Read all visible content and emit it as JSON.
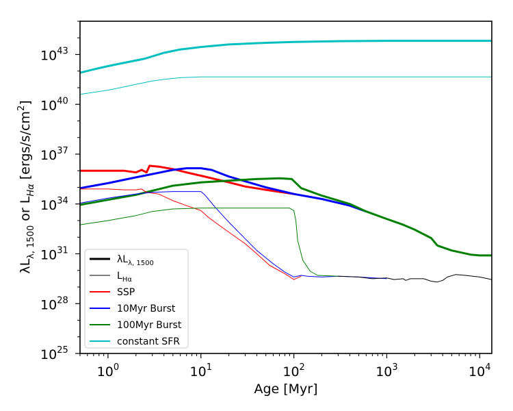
{
  "chart_data": {
    "type": "line",
    "xlabel": "Age [Myr]",
    "ylabel": "λL_{λ,1500} or L_{Hα} [ergs/s/cm^2]",
    "xscale": "log",
    "yscale": "log",
    "xlim": [
      0.5,
      13500
    ],
    "ylim_exp": [
      25,
      45
    ],
    "xticks": [
      {
        "exp": 0,
        "label": "10",
        "sup": "0"
      },
      {
        "exp": 1,
        "label": "10",
        "sup": "1"
      },
      {
        "exp": 2,
        "label": "10",
        "sup": "2"
      },
      {
        "exp": 3,
        "label": "10",
        "sup": "3"
      },
      {
        "exp": 4,
        "label": "10",
        "sup": "4"
      }
    ],
    "yticks": [
      {
        "exp": 25,
        "label": "10",
        "sup": "25"
      },
      {
        "exp": 28,
        "label": "10",
        "sup": "28"
      },
      {
        "exp": 31,
        "label": "10",
        "sup": "31"
      },
      {
        "exp": 34,
        "label": "10",
        "sup": "34"
      },
      {
        "exp": 37,
        "label": "10",
        "sup": "37"
      },
      {
        "exp": 40,
        "label": "10",
        "sup": "40"
      },
      {
        "exp": 43,
        "label": "10",
        "sup": "43"
      }
    ],
    "legend_position": "lower-left",
    "legend": [
      {
        "label": "λL",
        "sub": "λ, 1500",
        "color": "#000000",
        "width": 3
      },
      {
        "label": "L",
        "sub": "Hα",
        "color": "#000000",
        "width": 1
      },
      {
        "label": "SSP",
        "sub": "",
        "color": "#ff0000",
        "width": 2
      },
      {
        "label": "10Myr Burst",
        "sub": "",
        "color": "#0000ff",
        "width": 2
      },
      {
        "label": "100Myr Burst",
        "sub": "",
        "color": "#008000",
        "width": 2
      },
      {
        "label": "constant SFR",
        "sub": "",
        "color": "#00bfbf",
        "width": 2
      }
    ],
    "series": [
      {
        "kind": "uv",
        "color": "#ff0000",
        "points": [
          [
            0.5,
            36.0
          ],
          [
            1,
            36.0
          ],
          [
            1.5,
            36.0
          ],
          [
            2,
            35.9
          ],
          [
            2.3,
            36.05
          ],
          [
            2.6,
            35.9
          ],
          [
            2.8,
            36.3
          ],
          [
            3.5,
            36.25
          ],
          [
            5,
            36.1
          ],
          [
            7,
            35.9
          ],
          [
            10,
            35.7
          ],
          [
            20,
            35.3
          ],
          [
            30,
            35.05
          ],
          [
            50,
            34.85
          ],
          [
            100,
            34.6
          ]
        ]
      },
      {
        "kind": "uv",
        "color": "#0000ff",
        "points": [
          [
            0.5,
            34.95
          ],
          [
            1,
            35.25
          ],
          [
            2,
            35.6
          ],
          [
            3,
            35.8
          ],
          [
            5,
            36.05
          ],
          [
            7,
            36.15
          ],
          [
            10,
            36.15
          ],
          [
            13,
            36.05
          ],
          [
            20,
            35.65
          ],
          [
            50,
            35.0
          ],
          [
            100,
            34.6
          ],
          [
            200,
            34.3
          ],
          [
            400,
            33.9
          ],
          [
            600,
            33.55
          ]
        ]
      },
      {
        "kind": "uv",
        "color": "#008000",
        "points": [
          [
            0.5,
            33.95
          ],
          [
            1,
            34.25
          ],
          [
            2,
            34.55
          ],
          [
            3,
            34.8
          ],
          [
            5,
            35.1
          ],
          [
            10,
            35.3
          ],
          [
            20,
            35.4
          ],
          [
            40,
            35.5
          ],
          [
            70,
            35.55
          ],
          [
            95,
            35.5
          ],
          [
            120,
            34.95
          ],
          [
            200,
            34.5
          ],
          [
            400,
            34.0
          ],
          [
            600,
            33.55
          ],
          [
            1000,
            33.1
          ],
          [
            1500,
            32.75
          ],
          [
            2000,
            32.45
          ],
          [
            3000,
            31.95
          ],
          [
            3500,
            31.5
          ],
          [
            5000,
            31.2
          ],
          [
            8000,
            30.95
          ],
          [
            10000,
            30.9
          ],
          [
            13500,
            30.9
          ]
        ]
      },
      {
        "kind": "uv",
        "color": "#00bfbf",
        "points": [
          [
            0.5,
            41.9
          ],
          [
            0.7,
            42.1
          ],
          [
            1,
            42.3
          ],
          [
            1.5,
            42.5
          ],
          [
            2.5,
            42.75
          ],
          [
            4,
            43.1
          ],
          [
            6,
            43.3
          ],
          [
            10,
            43.45
          ],
          [
            20,
            43.6
          ],
          [
            50,
            43.7
          ],
          [
            100,
            43.75
          ],
          [
            300,
            43.8
          ],
          [
            1000,
            43.82
          ],
          [
            13500,
            43.82
          ]
        ]
      },
      {
        "kind": "ha",
        "color": "#ff0000",
        "points": [
          [
            0.5,
            34.9
          ],
          [
            1,
            34.9
          ],
          [
            1.5,
            34.85
          ],
          [
            2,
            34.85
          ],
          [
            2.3,
            34.9
          ],
          [
            2.6,
            34.7
          ],
          [
            3.5,
            34.6
          ],
          [
            5,
            34.2
          ],
          [
            7,
            33.9
          ],
          [
            10,
            33.6
          ],
          [
            12,
            33.2
          ],
          [
            15,
            32.8
          ],
          [
            20,
            32.3
          ],
          [
            30,
            31.6
          ],
          [
            40,
            31.0
          ],
          [
            55,
            30.3
          ],
          [
            80,
            29.8
          ],
          [
            100,
            29.45
          ],
          [
            120,
            29.65
          ]
        ]
      },
      {
        "kind": "ha",
        "color": "#0000ff",
        "points": [
          [
            0.5,
            34.05
          ],
          [
            1,
            34.35
          ],
          [
            2,
            34.6
          ],
          [
            3,
            34.7
          ],
          [
            5,
            34.75
          ],
          [
            10,
            34.75
          ],
          [
            11,
            34.55
          ],
          [
            14,
            33.85
          ],
          [
            20,
            32.9
          ],
          [
            30,
            31.9
          ],
          [
            40,
            31.2
          ],
          [
            60,
            30.4
          ],
          [
            80,
            29.9
          ],
          [
            100,
            29.6
          ],
          [
            120,
            29.7
          ],
          [
            140,
            29.65
          ],
          [
            200,
            29.6
          ],
          [
            300,
            29.65
          ],
          [
            500,
            29.6
          ],
          [
            1000,
            29.5
          ]
        ]
      },
      {
        "kind": "ha",
        "color": "#008000",
        "points": [
          [
            0.5,
            32.75
          ],
          [
            1,
            33.0
          ],
          [
            2,
            33.3
          ],
          [
            3,
            33.55
          ],
          [
            5,
            33.7
          ],
          [
            10,
            33.75
          ],
          [
            20,
            33.75
          ],
          [
            50,
            33.75
          ],
          [
            90,
            33.75
          ],
          [
            100,
            33.6
          ],
          [
            105,
            33.0
          ],
          [
            110,
            31.8
          ],
          [
            125,
            30.6
          ],
          [
            150,
            29.95
          ],
          [
            180,
            29.7
          ],
          [
            300,
            29.65
          ]
        ]
      },
      {
        "kind": "ha",
        "color": "#00bfbf",
        "points": [
          [
            0.5,
            40.6
          ],
          [
            1,
            40.85
          ],
          [
            1.5,
            41.05
          ],
          [
            2,
            41.2
          ],
          [
            3,
            41.4
          ],
          [
            4,
            41.5
          ],
          [
            6,
            41.6
          ],
          [
            10,
            41.65
          ],
          [
            13500,
            41.65
          ]
        ]
      },
      {
        "kind": "ha",
        "color": "#000000",
        "points": [
          [
            300,
            29.65
          ],
          [
            500,
            29.6
          ],
          [
            700,
            29.5
          ],
          [
            1000,
            29.55
          ],
          [
            1200,
            29.45
          ],
          [
            1500,
            29.5
          ],
          [
            1600,
            29.4
          ],
          [
            1800,
            29.5
          ],
          [
            2500,
            29.5
          ],
          [
            3000,
            29.35
          ],
          [
            3500,
            29.3
          ],
          [
            4000,
            29.4
          ],
          [
            4500,
            29.6
          ],
          [
            5500,
            29.75
          ],
          [
            7000,
            29.7
          ],
          [
            10000,
            29.6
          ],
          [
            13500,
            29.45
          ]
        ]
      }
    ]
  }
}
